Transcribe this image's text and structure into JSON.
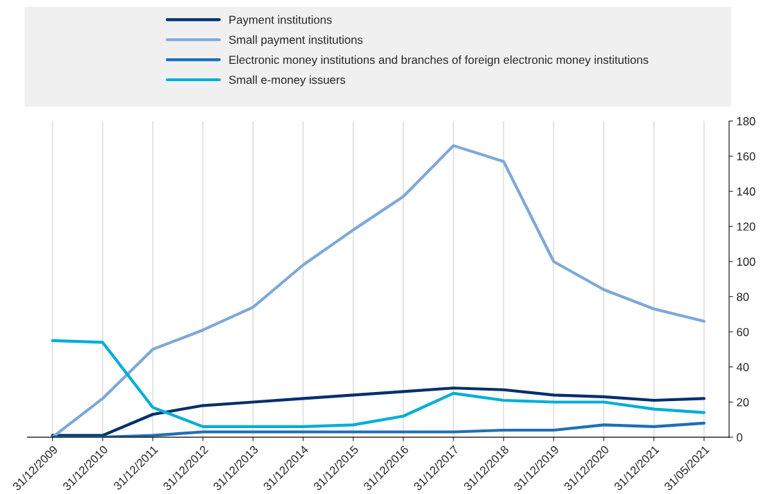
{
  "chart_data": {
    "type": "line",
    "categories": [
      "31/12/2009",
      "31/12/2010",
      "31/12/2011",
      "31/12/2012",
      "31/12/2013",
      "31/12/2014",
      "31/12/2015",
      "31/12/2016",
      "31/12/2017",
      "31/12/2018",
      "31/12/2019",
      "31/12/2020",
      "31/12/2021",
      "31/05/2021"
    ],
    "series": [
      {
        "name": "Payment institutions",
        "color": "#002f6c",
        "values": [
          1,
          1,
          13,
          18,
          20,
          22,
          24,
          26,
          28,
          27,
          24,
          23,
          21,
          22
        ]
      },
      {
        "name": "Small payment institutions",
        "color": "#7fa8d9",
        "values": [
          0,
          22,
          50,
          61,
          74,
          98,
          118,
          137,
          166,
          157,
          100,
          84,
          73,
          66
        ]
      },
      {
        "name": "Electronic money institutions and branches of foreign electronic money institutions",
        "color": "#1f6fb5",
        "values": [
          0,
          0,
          1,
          3,
          3,
          3,
          3,
          3,
          3,
          4,
          4,
          7,
          6,
          8
        ]
      },
      {
        "name": "Small e-money issuers",
        "color": "#00aed6",
        "values": [
          55,
          54,
          17,
          6,
          6,
          6,
          7,
          12,
          25,
          21,
          20,
          20,
          16,
          14
        ]
      }
    ],
    "ylim": [
      0,
      180
    ],
    "yticks": [
      0,
      20,
      40,
      60,
      80,
      100,
      120,
      140,
      160,
      180
    ],
    "grid": "x",
    "legend": "top"
  }
}
